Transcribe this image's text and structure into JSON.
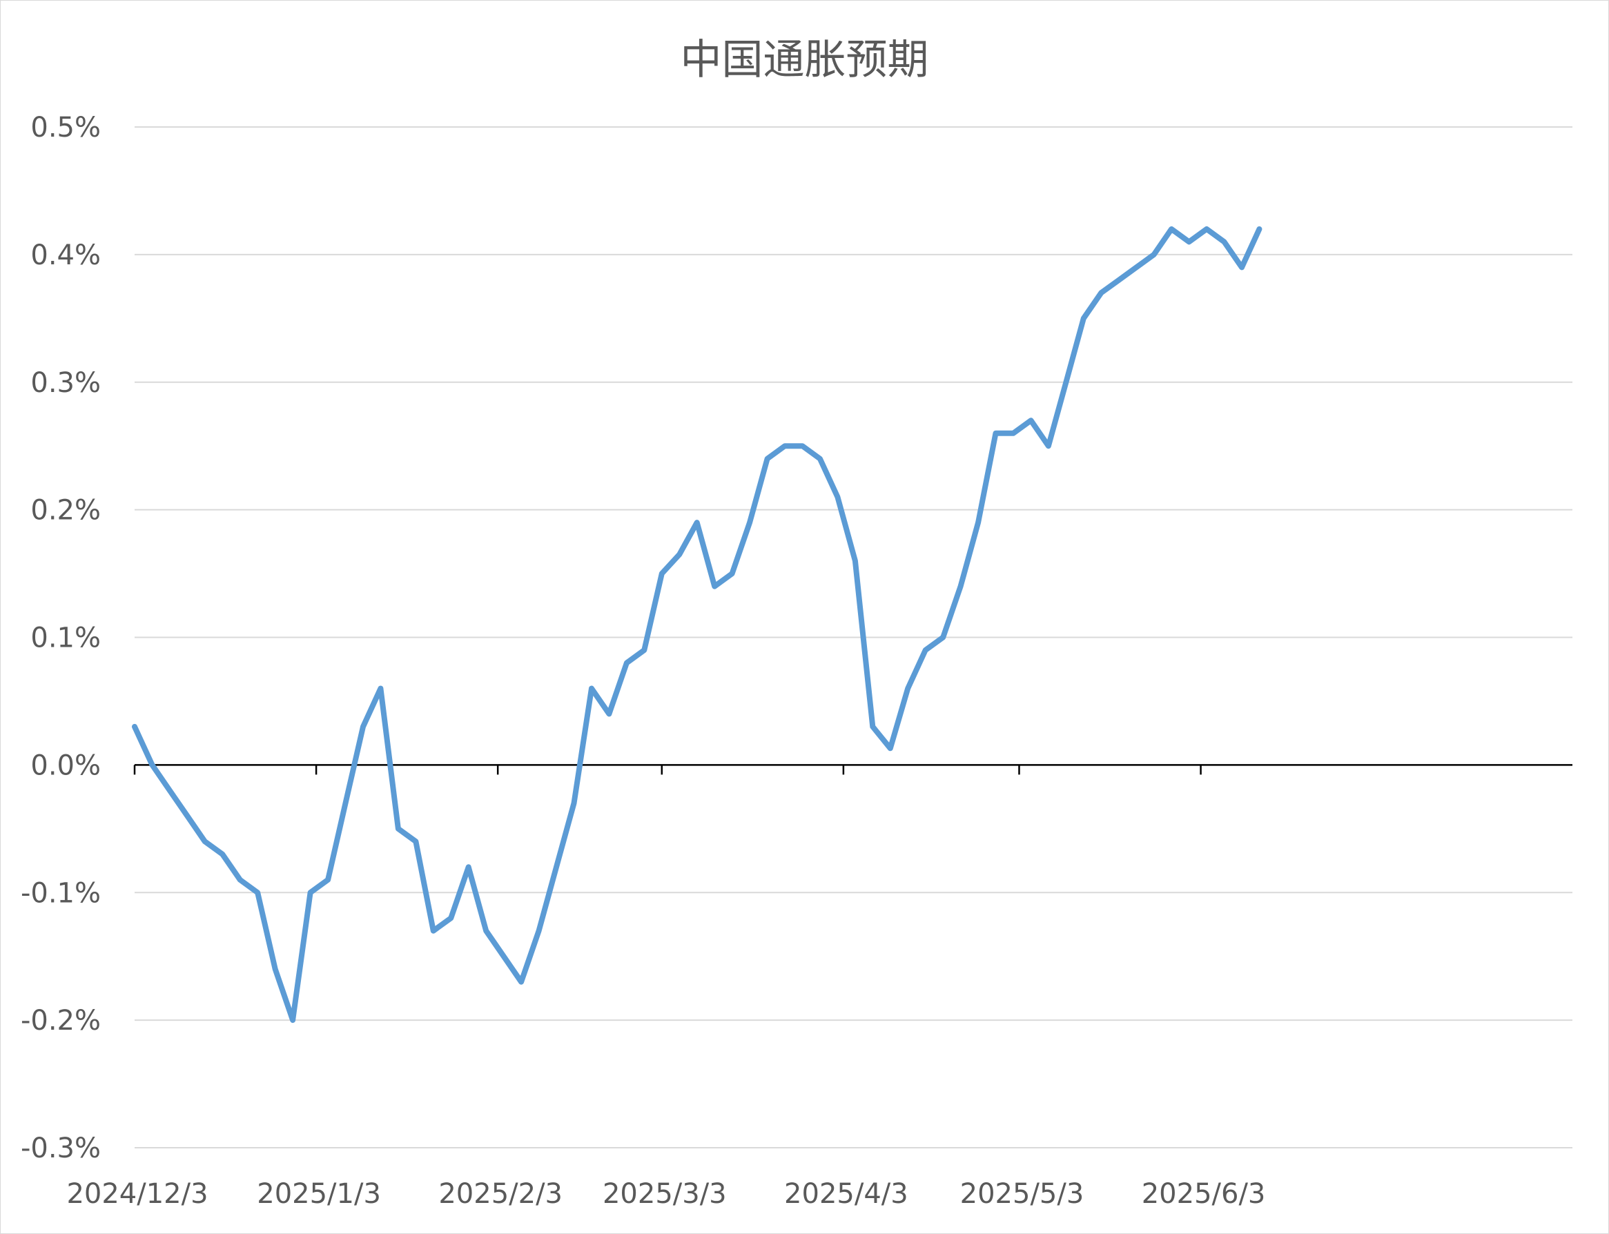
{
  "chart_data": {
    "type": "line",
    "title": "中国通胀预期",
    "xlabel": "",
    "ylabel": "",
    "x_range": [
      "2024-12-03",
      "2025-06-10"
    ],
    "x_ticks": [
      {
        "date": "2024-12-03",
        "label": "2024/12/3"
      },
      {
        "date": "2025-01-03",
        "label": "2025/1/3"
      },
      {
        "date": "2025-02-03",
        "label": "2025/2/3"
      },
      {
        "date": "2025-03-03",
        "label": "2025/3/3"
      },
      {
        "date": "2025-04-03",
        "label": "2025/4/3"
      },
      {
        "date": "2025-05-03",
        "label": "2025/5/3"
      },
      {
        "date": "2025-06-03",
        "label": "2025/6/3"
      }
    ],
    "ylim": [
      -0.3,
      0.5
    ],
    "y_ticks": [
      {
        "value": 0.5,
        "label": "0.5%"
      },
      {
        "value": 0.4,
        "label": "0.4%"
      },
      {
        "value": 0.3,
        "label": "0.3%"
      },
      {
        "value": 0.2,
        "label": "0.2%"
      },
      {
        "value": 0.1,
        "label": "0.1%"
      },
      {
        "value": 0.0,
        "label": "0.0%"
      },
      {
        "value": -0.1,
        "label": "-0.1%"
      },
      {
        "value": -0.2,
        "label": "-0.2%"
      },
      {
        "value": -0.3,
        "label": "-0.3%"
      }
    ],
    "grid": true,
    "legend": "none",
    "color": "#5b9bd5",
    "series": [
      {
        "points": [
          {
            "x": "2024-12-03",
            "y": 0.03
          },
          {
            "x": "2024-12-06",
            "y": 0.0
          },
          {
            "x": "2024-12-09",
            "y": -0.02
          },
          {
            "x": "2024-12-12",
            "y": -0.04
          },
          {
            "x": "2024-12-15",
            "y": -0.06
          },
          {
            "x": "2024-12-18",
            "y": -0.07
          },
          {
            "x": "2024-12-21",
            "y": -0.09
          },
          {
            "x": "2024-12-24",
            "y": -0.1
          },
          {
            "x": "2024-12-27",
            "y": -0.16
          },
          {
            "x": "2024-12-30",
            "y": -0.2
          },
          {
            "x": "2025-01-02",
            "y": -0.1
          },
          {
            "x": "2025-01-05",
            "y": -0.09
          },
          {
            "x": "2025-01-08",
            "y": -0.03
          },
          {
            "x": "2025-01-11",
            "y": 0.03
          },
          {
            "x": "2025-01-14",
            "y": 0.06
          },
          {
            "x": "2025-01-17",
            "y": -0.05
          },
          {
            "x": "2025-01-20",
            "y": -0.06
          },
          {
            "x": "2025-01-23",
            "y": -0.13
          },
          {
            "x": "2025-01-26",
            "y": -0.12
          },
          {
            "x": "2025-01-29",
            "y": -0.08
          },
          {
            "x": "2025-02-01",
            "y": -0.13
          },
          {
            "x": "2025-02-04",
            "y": -0.15
          },
          {
            "x": "2025-02-07",
            "y": -0.17
          },
          {
            "x": "2025-02-10",
            "y": -0.13
          },
          {
            "x": "2025-02-13",
            "y": -0.08
          },
          {
            "x": "2025-02-16",
            "y": -0.03
          },
          {
            "x": "2025-02-19",
            "y": 0.06
          },
          {
            "x": "2025-02-22",
            "y": 0.04
          },
          {
            "x": "2025-02-25",
            "y": 0.08
          },
          {
            "x": "2025-02-28",
            "y": 0.09
          },
          {
            "x": "2025-03-03",
            "y": 0.15
          },
          {
            "x": "2025-03-06",
            "y": 0.165
          },
          {
            "x": "2025-03-09",
            "y": 0.19
          },
          {
            "x": "2025-03-12",
            "y": 0.14
          },
          {
            "x": "2025-03-15",
            "y": 0.15
          },
          {
            "x": "2025-03-18",
            "y": 0.19
          },
          {
            "x": "2025-03-21",
            "y": 0.24
          },
          {
            "x": "2025-03-24",
            "y": 0.25
          },
          {
            "x": "2025-03-27",
            "y": 0.25
          },
          {
            "x": "2025-03-30",
            "y": 0.24
          },
          {
            "x": "2025-04-02",
            "y": 0.21
          },
          {
            "x": "2025-04-05",
            "y": 0.16
          },
          {
            "x": "2025-04-08",
            "y": 0.03
          },
          {
            "x": "2025-04-11",
            "y": 0.013
          },
          {
            "x": "2025-04-14",
            "y": 0.06
          },
          {
            "x": "2025-04-17",
            "y": 0.09
          },
          {
            "x": "2025-04-20",
            "y": 0.1
          },
          {
            "x": "2025-04-23",
            "y": 0.14
          },
          {
            "x": "2025-04-26",
            "y": 0.19
          },
          {
            "x": "2025-04-29",
            "y": 0.26
          },
          {
            "x": "2025-05-02",
            "y": 0.26
          },
          {
            "x": "2025-05-05",
            "y": 0.27
          },
          {
            "x": "2025-05-08",
            "y": 0.25
          },
          {
            "x": "2025-05-11",
            "y": 0.3
          },
          {
            "x": "2025-05-14",
            "y": 0.35
          },
          {
            "x": "2025-05-17",
            "y": 0.37
          },
          {
            "x": "2025-05-20",
            "y": 0.38
          },
          {
            "x": "2025-05-23",
            "y": 0.39
          },
          {
            "x": "2025-05-26",
            "y": 0.4
          },
          {
            "x": "2025-05-29",
            "y": 0.42
          },
          {
            "x": "2025-06-01",
            "y": 0.41
          },
          {
            "x": "2025-06-04",
            "y": 0.42
          },
          {
            "x": "2025-06-07",
            "y": 0.41
          },
          {
            "x": "2025-06-10",
            "y": 0.39
          },
          {
            "x": "2025-06-13",
            "y": 0.42
          }
        ]
      }
    ]
  }
}
